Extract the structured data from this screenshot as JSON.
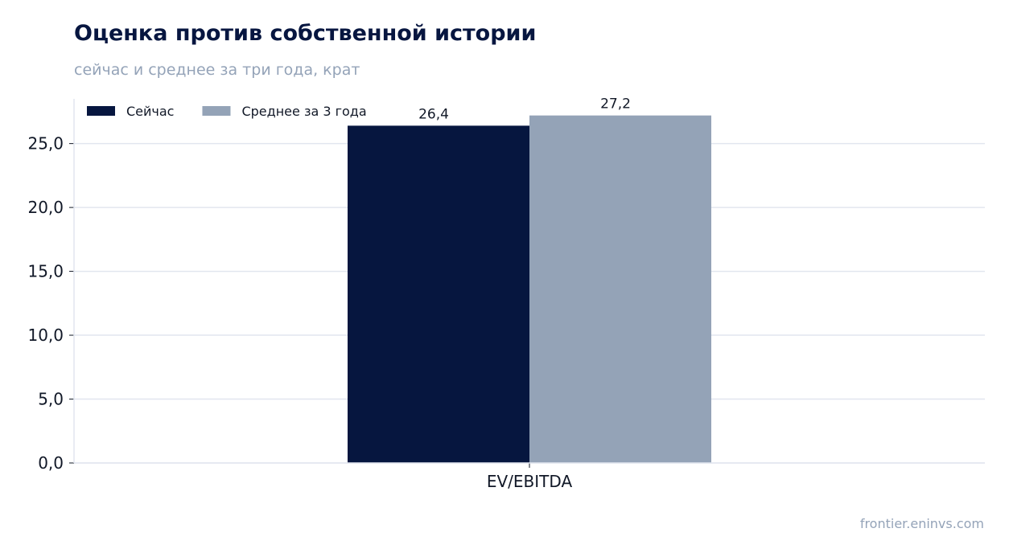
{
  "title": "Оценка против собственной истории",
  "subtitle": "сейчас и среднее за три года, крат",
  "source": "frontier.eninvs.com",
  "colors": {
    "now": "#06163f",
    "avg": "#94a3b7",
    "grid": "#e2e6ef",
    "axis": "#e2e6ef"
  },
  "chart_data": {
    "type": "bar",
    "categories": [
      "EV/EBITDA"
    ],
    "series": [
      {
        "name": "Сейчас",
        "values": [
          26.4
        ],
        "value_labels": [
          "26,4"
        ],
        "color": "#06163f"
      },
      {
        "name": "Среднее за 3 года",
        "values": [
          27.2
        ],
        "value_labels": [
          "27,2"
        ],
        "color": "#94a3b7"
      }
    ],
    "yticks": [
      0,
      5,
      10,
      15,
      20,
      25
    ],
    "ytick_labels": [
      "0,0",
      "5,0",
      "10,0",
      "15,0",
      "20,0",
      "25,0"
    ],
    "ylim": [
      0,
      28.5
    ],
    "grid": true,
    "legend": "top-left"
  }
}
